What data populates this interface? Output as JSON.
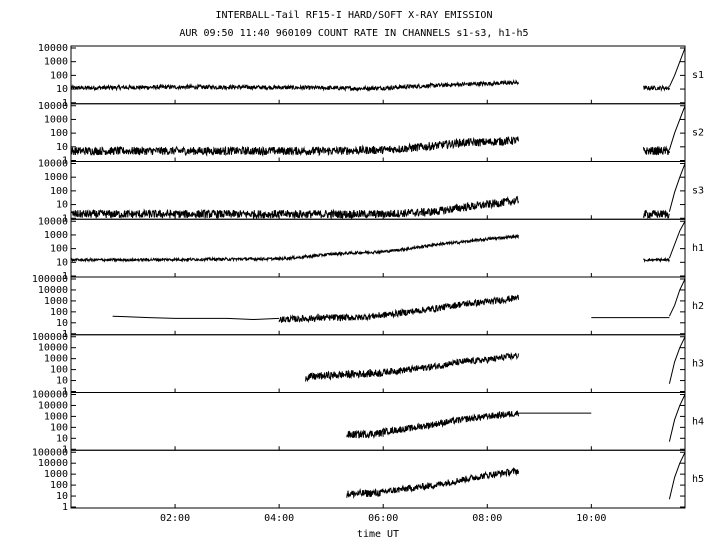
{
  "title_line1": "INTERBALL-Tail RF15-I HARD/SOFT X-RAY EMISSION",
  "title_line2": "AUR 09:50 11:40 960109  COUNT RATE IN CHANNELS s1-s3, h1-h5",
  "chart_data": {
    "type": "line",
    "xlabel": "time UT",
    "x_unit": "hours UT",
    "xlim": [
      0.0,
      11.8
    ],
    "x_ticks": [
      {
        "value": 2,
        "label": "02:00"
      },
      {
        "value": 4,
        "label": "04:00"
      },
      {
        "value": 6,
        "label": "06:00"
      },
      {
        "value": 8,
        "label": "08:00"
      },
      {
        "value": 10,
        "label": "10:00"
      }
    ],
    "y_scale": "log",
    "panels": [
      {
        "name": "s1",
        "ylim": [
          1,
          10000
        ],
        "y_tick_labels": [
          "1",
          "10",
          "100",
          "1000",
          "10000"
        ],
        "series": [
          {
            "x": [
              0.0,
              1.0,
              2.0,
              3.0,
              4.0,
              5.0,
              5.5,
              6.0,
              6.5,
              7.0,
              7.5,
              8.0,
              8.6
            ],
            "y": [
              12,
              13,
              14,
              14,
              13,
              12,
              11,
              12,
              15,
              18,
              22,
              25,
              30
            ],
            "noise": 0.15
          },
          {
            "x": [
              11.0,
              11.5
            ],
            "y": [
              12,
              12
            ],
            "noise": 0.15
          },
          {
            "x": [
              11.5,
              11.6,
              11.7,
              11.8
            ],
            "y": [
              15,
              100,
              1000,
              10000
            ],
            "noise": 0
          }
        ]
      },
      {
        "name": "s2",
        "ylim": [
          1,
          10000
        ],
        "y_tick_labels": [
          "1",
          "10",
          "100",
          "1000",
          "10000"
        ],
        "series": [
          {
            "x": [
              0.0,
              2.0,
              4.0,
              5.0,
              6.0,
              6.5,
              7.0,
              7.5,
              8.0,
              8.6
            ],
            "y": [
              5,
              5,
              5,
              5,
              6,
              8,
              12,
              20,
              22,
              30
            ],
            "noise": 0.3
          },
          {
            "x": [
              11.0,
              11.5
            ],
            "y": [
              5,
              5
            ],
            "noise": 0.3
          },
          {
            "x": [
              11.5,
              11.6,
              11.7,
              11.8
            ],
            "y": [
              6,
              100,
              1000,
              10000
            ],
            "noise": 0
          }
        ]
      },
      {
        "name": "s3",
        "ylim": [
          1,
          10000
        ],
        "y_tick_labels": [
          "1",
          "10",
          "100",
          "1000",
          "10000"
        ],
        "series": [
          {
            "x": [
              0.0,
              2.0,
              4.0,
              6.0,
              7.0,
              7.5,
              8.0,
              8.6
            ],
            "y": [
              2,
              2,
              2,
              2,
              3,
              6,
              10,
              20
            ],
            "noise": 0.3
          },
          {
            "x": [
              11.0,
              11.5
            ],
            "y": [
              2,
              2
            ],
            "noise": 0.3
          },
          {
            "x": [
              11.5,
              11.6,
              11.7,
              11.8
            ],
            "y": [
              3,
              80,
              1000,
              10000
            ],
            "noise": 0
          }
        ]
      },
      {
        "name": "h1",
        "ylim": [
          1,
          10000
        ],
        "y_tick_labels": [
          "1",
          "10",
          "100",
          "1000",
          "10000"
        ],
        "series": [
          {
            "x": [
              0.0,
              1.0,
              2.0,
              3.0,
              4.0,
              4.5,
              5.0,
              5.5,
              6.0,
              6.5,
              7.0,
              7.5,
              8.0,
              8.6
            ],
            "y": [
              15,
              15,
              16,
              17,
              18,
              25,
              40,
              50,
              60,
              100,
              200,
              300,
              500,
              800
            ],
            "noise": 0.1
          },
          {
            "x": [
              11.0,
              11.5
            ],
            "y": [
              15,
              15
            ],
            "noise": 0.1
          },
          {
            "x": [
              11.5,
              11.6,
              11.7,
              11.8
            ],
            "y": [
              20,
              200,
              2000,
              10000
            ],
            "noise": 0
          }
        ]
      },
      {
        "name": "h2",
        "ylim": [
          1,
          100000
        ],
        "y_tick_labels": [
          "1",
          "10",
          "100",
          "1000",
          "10000",
          "100000"
        ],
        "series": [
          {
            "x": [
              0.8,
              1.5,
              2.0,
              3.0,
              3.5,
              4.0
            ],
            "y": [
              40,
              30,
              25,
              25,
              20,
              25
            ],
            "noise": 0
          },
          {
            "x": [
              4.0,
              5.0,
              5.5,
              6.0,
              6.5,
              7.0,
              7.5,
              8.0,
              8.6
            ],
            "y": [
              20,
              30,
              30,
              50,
              100,
              200,
              500,
              800,
              2000
            ],
            "noise": 0.3
          },
          {
            "x": [
              10.0,
              11.5
            ],
            "y": [
              30,
              30
            ],
            "noise": 0
          },
          {
            "x": [
              11.5,
              11.6,
              11.7,
              11.8
            ],
            "y": [
              40,
              400,
              10000,
              100000
            ],
            "noise": 0
          }
        ]
      },
      {
        "name": "h3",
        "ylim": [
          1,
          100000
        ],
        "y_tick_labels": [
          "1",
          "10",
          "100",
          "1000",
          "10000",
          "100000"
        ],
        "series": [
          {
            "x": [
              4.5,
              5.0,
              5.5,
              6.0
            ],
            "y": [
              20,
              30,
              40,
              50
            ],
            "noise": 0.35
          },
          {
            "x": [
              6.0,
              6.5,
              7.0,
              7.5,
              8.0,
              8.6
            ],
            "y": [
              60,
              100,
              200,
              500,
              800,
              2000
            ],
            "noise": 0.3
          },
          {
            "x": [
              11.5,
              11.6,
              11.7,
              11.8
            ],
            "y": [
              5,
              500,
              10000,
              100000
            ],
            "noise": 0
          }
        ]
      },
      {
        "name": "h4",
        "ylim": [
          1,
          100000
        ],
        "y_tick_labels": [
          "1",
          "10",
          "100",
          "1000",
          "10000",
          "100000"
        ],
        "series": [
          {
            "x": [
              5.3,
              6.0
            ],
            "y": [
              20,
              30
            ],
            "noise": 0.35
          },
          {
            "x": [
              6.0,
              6.5,
              7.0,
              7.5,
              8.0,
              8.6
            ],
            "y": [
              40,
              80,
              200,
              500,
              1000,
              2000
            ],
            "noise": 0.3
          },
          {
            "x": [
              8.6,
              10.0
            ],
            "y": [
              2000,
              2000
            ],
            "noise": 0
          },
          {
            "x": [
              11.5,
              11.6,
              11.7,
              11.8
            ],
            "y": [
              5,
              500,
              10000,
              100000
            ],
            "noise": 0
          }
        ]
      },
      {
        "name": "h5",
        "ylim": [
          1,
          100000
        ],
        "y_tick_labels": [
          "1",
          "10",
          "100",
          "1000",
          "10000",
          "100000"
        ],
        "series": [
          {
            "x": [
              5.3,
              6.0
            ],
            "y": [
              15,
              20
            ],
            "noise": 0.35
          },
          {
            "x": [
              6.0,
              6.5,
              7.0,
              7.5,
              8.0,
              8.6
            ],
            "y": [
              25,
              50,
              100,
              300,
              800,
              2000
            ],
            "noise": 0.3
          },
          {
            "x": [
              11.5,
              11.6,
              11.7,
              11.8
            ],
            "y": [
              5,
              500,
              10000,
              100000
            ],
            "noise": 0
          }
        ]
      }
    ]
  }
}
